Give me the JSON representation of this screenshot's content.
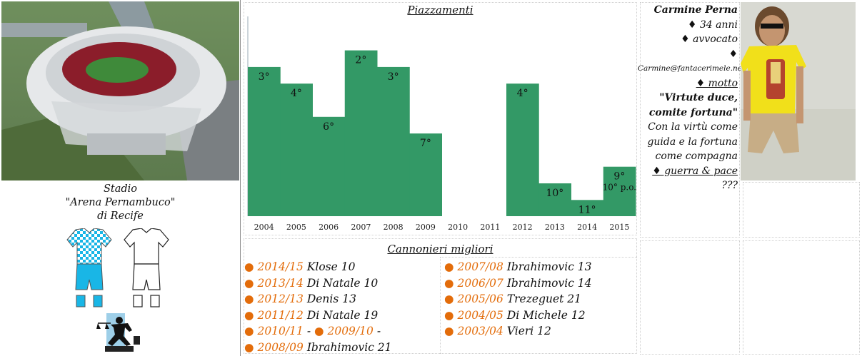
{
  "stadium": {
    "caption_line1": "Stadio",
    "caption_line2": "\"Arena Pernambuco\"",
    "caption_line3": "di Recife"
  },
  "kits": {
    "home_colors": [
      "#19b6e6",
      "#ffffff"
    ],
    "away_colors": [
      "#ffffff",
      "#111111"
    ]
  },
  "logo": {
    "icon": "justice-scales-figure-icon"
  },
  "chart_data": {
    "type": "bar",
    "title": "Piazzamenti",
    "categories": [
      "2004",
      "2005",
      "2006",
      "2007",
      "2008",
      "2009",
      "2010",
      "2011",
      "2012",
      "2013",
      "2014",
      "2015"
    ],
    "values": [
      3,
      4,
      6,
      2,
      3,
      7,
      null,
      null,
      4,
      10,
      11,
      9
    ],
    "labels": [
      "3°",
      "4°",
      "6°",
      "2°",
      "3°",
      "7°",
      "",
      "",
      "4°",
      "10°",
      "11°",
      "9°"
    ],
    "extra_label_2015": "10° p.o.",
    "color": "#339966",
    "grid": false
  },
  "scorers": {
    "title": "Cannonieri migliori",
    "left": [
      {
        "season": "2014/15",
        "text": "Klose 10"
      },
      {
        "season": "2013/14",
        "text": "Di Natale 10"
      },
      {
        "season": "2012/13",
        "text": "Denis 13"
      },
      {
        "season": "2011/12",
        "text": "Di Natale 19"
      },
      {
        "season": "2010/11",
        "text": "-",
        "season2": "2009/10",
        "text2": "-"
      },
      {
        "season": "2008/09",
        "text": "Ibrahimovic 21"
      }
    ],
    "right": [
      {
        "season": "2007/08",
        "text": "Ibrahimovic 13"
      },
      {
        "season": "2006/07",
        "text": "Ibrahimovic 14"
      },
      {
        "season": "2005/06",
        "text": "Trezeguet 21"
      },
      {
        "season": "2004/05",
        "text": "Di Michele 12"
      },
      {
        "season": "2003/04",
        "text": "Vieri 12"
      }
    ]
  },
  "profile": {
    "name": "Carmine Perna",
    "age": "♦ 34 anni",
    "job": "♦ avvocato",
    "email_bullet": "♦",
    "email": "Carmine@fantacerimele.net",
    "motto_label": "♦ motto",
    "motto_line1": "\"Virtute duce,",
    "motto_line2": "comite fortuna\"",
    "translation_line1": "Con la virtù come",
    "translation_line2": "guida e la fortuna",
    "translation_line3": "come compagna",
    "war_peace": "♦ guerra & pace",
    "unknown": "???"
  }
}
